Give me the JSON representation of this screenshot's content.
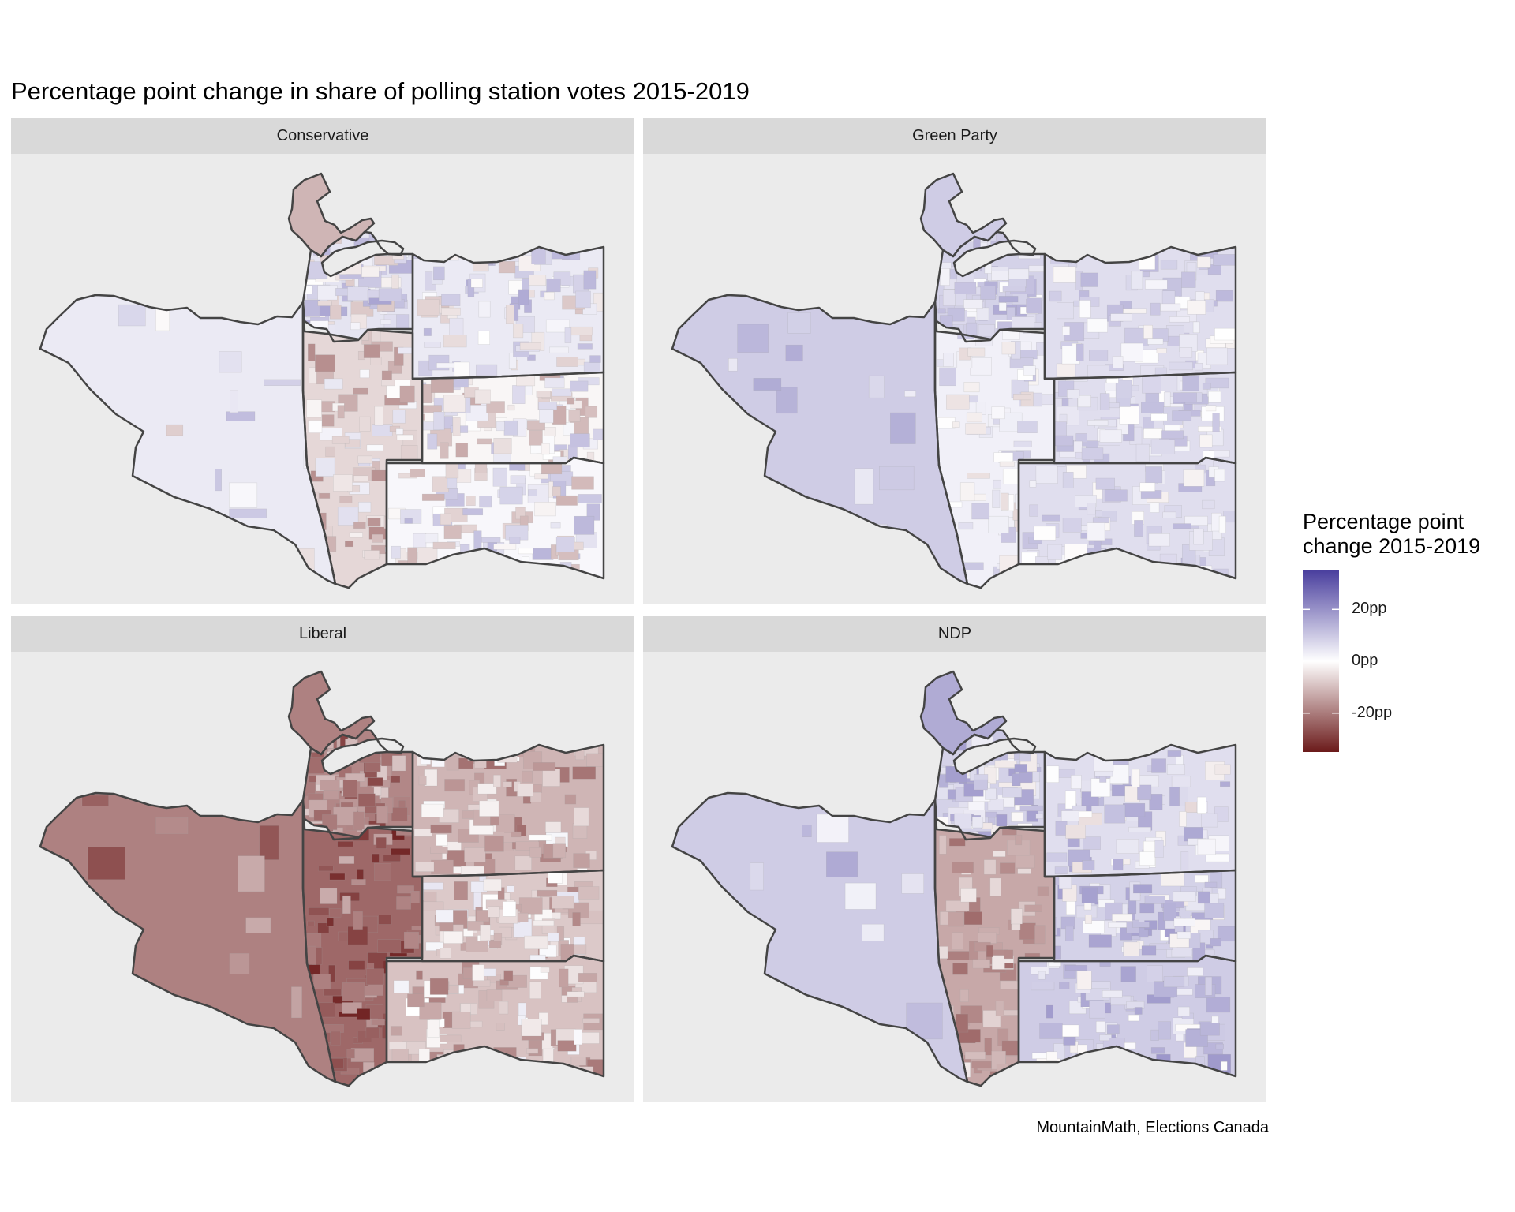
{
  "chart_data": {
    "type": "choropleth",
    "title": "Percentage point change in share of polling station votes 2015-2019",
    "caption": "MountainMath, Elections Canada",
    "facets": [
      {
        "name": "Conservative",
        "riding_base_change_pp": {
          "vancouver_quadra": 3,
          "vancouver_centre_park": -10,
          "vancouver_centre": 4,
          "vancouver_granville": -5,
          "vancouver_east": 3,
          "vancouver_kingsway": -1,
          "vancouver_south": 1
        },
        "texture_spread_pp": 8
      },
      {
        "name": "Green Party",
        "riding_base_change_pp": {
          "vancouver_quadra": 8,
          "vancouver_centre_park": 8,
          "vancouver_centre": 7,
          "vancouver_granville": 2,
          "vancouver_east": 5,
          "vancouver_kingsway": 5,
          "vancouver_south": 5
        },
        "texture_spread_pp": 5
      },
      {
        "name": "Liberal",
        "riding_base_change_pp": {
          "vancouver_quadra": -18,
          "vancouver_centre_park": -18,
          "vancouver_centre": -17,
          "vancouver_granville": -22,
          "vancouver_east": -10,
          "vancouver_kingsway": -7,
          "vancouver_south": -8
        },
        "texture_spread_pp": 8
      },
      {
        "name": "NDP",
        "riding_base_change_pp": {
          "vancouver_quadra": 8,
          "vancouver_centre_park": 14,
          "vancouver_centre": 7,
          "vancouver_granville": -12,
          "vancouver_east": 5,
          "vancouver_kingsway": 7,
          "vancouver_south": 8
        },
        "texture_spread_pp": 7
      }
    ],
    "legend": {
      "title": "Percentage point\nchange 2015-2019",
      "title_line1": "Percentage point",
      "title_line2": "change 2015-2019",
      "ticks": [
        20,
        0,
        -20
      ],
      "tick_labels": [
        "20pp",
        "0pp",
        "-20pp"
      ],
      "range": [
        -35,
        35
      ],
      "low_color": "#6b1a1a",
      "mid_color": "#ffffff",
      "high_color": "#4a3f9e"
    }
  },
  "colors": {
    "panel_bg": "#ebebeb",
    "strip_bg": "#d9d9d9",
    "border": "#444444"
  }
}
